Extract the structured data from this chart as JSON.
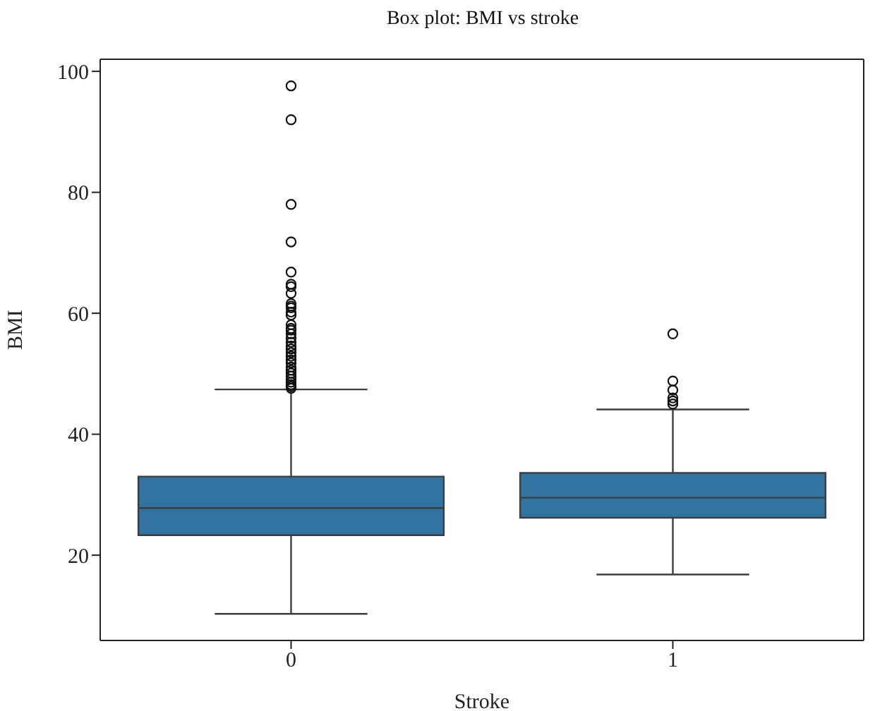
{
  "chart_data": {
    "type": "box",
    "title": "Box plot: BMI vs stroke",
    "xlabel": "Stroke",
    "ylabel": "BMI",
    "categories": [
      "0",
      "1"
    ],
    "color": "#3274a1",
    "ylim": [
      5.9,
      102
    ],
    "yticks": [
      20,
      40,
      60,
      80,
      100
    ],
    "grid": false,
    "legend": false,
    "boxes": [
      {
        "low": 10.3,
        "q1": 23.3,
        "median": 27.8,
        "q3": 33.0,
        "high": 47.4,
        "outliers": [
          97.6,
          92.0,
          78.0,
          71.8,
          66.8,
          64.8,
          64.4,
          63.3,
          61.6,
          61.2,
          60.9,
          60.2,
          59.7,
          58.1,
          57.5,
          57.2,
          56.6,
          55.9,
          55.2,
          54.6,
          54.1,
          53.5,
          52.9,
          52.3,
          51.8,
          51.1,
          50.6,
          50.1,
          49.6,
          49.1,
          48.6,
          48.2,
          47.9,
          47.6
        ]
      },
      {
        "low": 16.8,
        "q1": 26.2,
        "median": 29.5,
        "q3": 33.6,
        "high": 44.1,
        "outliers": [
          56.6,
          48.8,
          47.3,
          46.0,
          45.5,
          45.0
        ]
      }
    ]
  }
}
